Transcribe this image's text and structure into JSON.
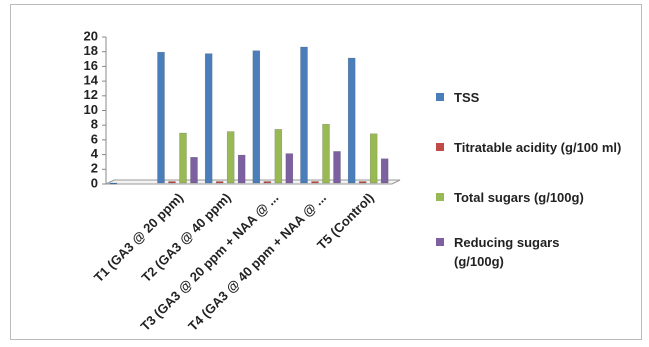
{
  "chart_data": {
    "type": "bar",
    "categories": [
      null,
      "T1 (GA3 @ 20 ppm)",
      "T2 (GA3 @ 40 ppm)",
      "T3 (GA3 @ 20 ppm + NAA @ ...",
      "T4 (GA3 @ 40 ppm + NAA @ ...",
      "T5 (Control)"
    ],
    "series": [
      {
        "name": "TSS",
        "color": "#4a7ebb",
        "values": [
          0,
          17.8,
          17.6,
          18.0,
          18.5,
          17.0
        ]
      },
      {
        "name": "Titratable acidity (g/100 ml)",
        "color": "#be4b48",
        "values": [
          null,
          0.2,
          0.2,
          0.2,
          0.2,
          0.2
        ]
      },
      {
        "name": "Total sugars (g/100g)",
        "color": "#98b954",
        "values": [
          null,
          6.8,
          7.0,
          7.3,
          8.0,
          6.7
        ]
      },
      {
        "name": "Reducing sugars (g/100g)",
        "color": "#7d60a0",
        "values": [
          null,
          3.5,
          3.8,
          4.0,
          4.3,
          3.3
        ]
      }
    ],
    "ylim": [
      0,
      20
    ],
    "yticks": [
      0,
      2,
      4,
      6,
      8,
      10,
      12,
      14,
      16,
      18,
      20
    ],
    "grid": false
  }
}
